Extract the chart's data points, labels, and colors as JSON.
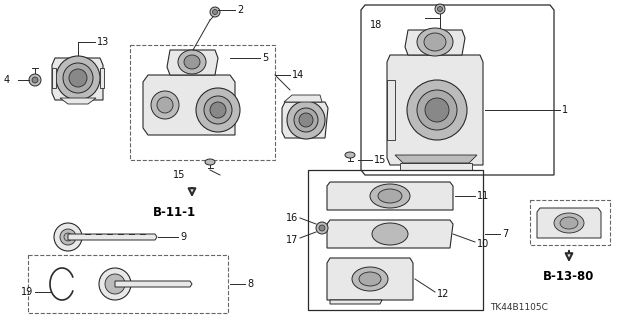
{
  "bg_color": "#ffffff",
  "fig_width": 6.4,
  "fig_height": 3.19,
  "dpi": 100,
  "line_color": "#2a2a2a",
  "gray_fill": "#e8e8e8",
  "dark_gray": "#888888",
  "mid_gray": "#bbbbbb",
  "dashed_color": "#666666",
  "label_fs": 7,
  "bold_fs": 8,
  "part_code": "TK44B1105C",
  "ref_b111": "B-11-1",
  "ref_b1380": "B-13-80"
}
